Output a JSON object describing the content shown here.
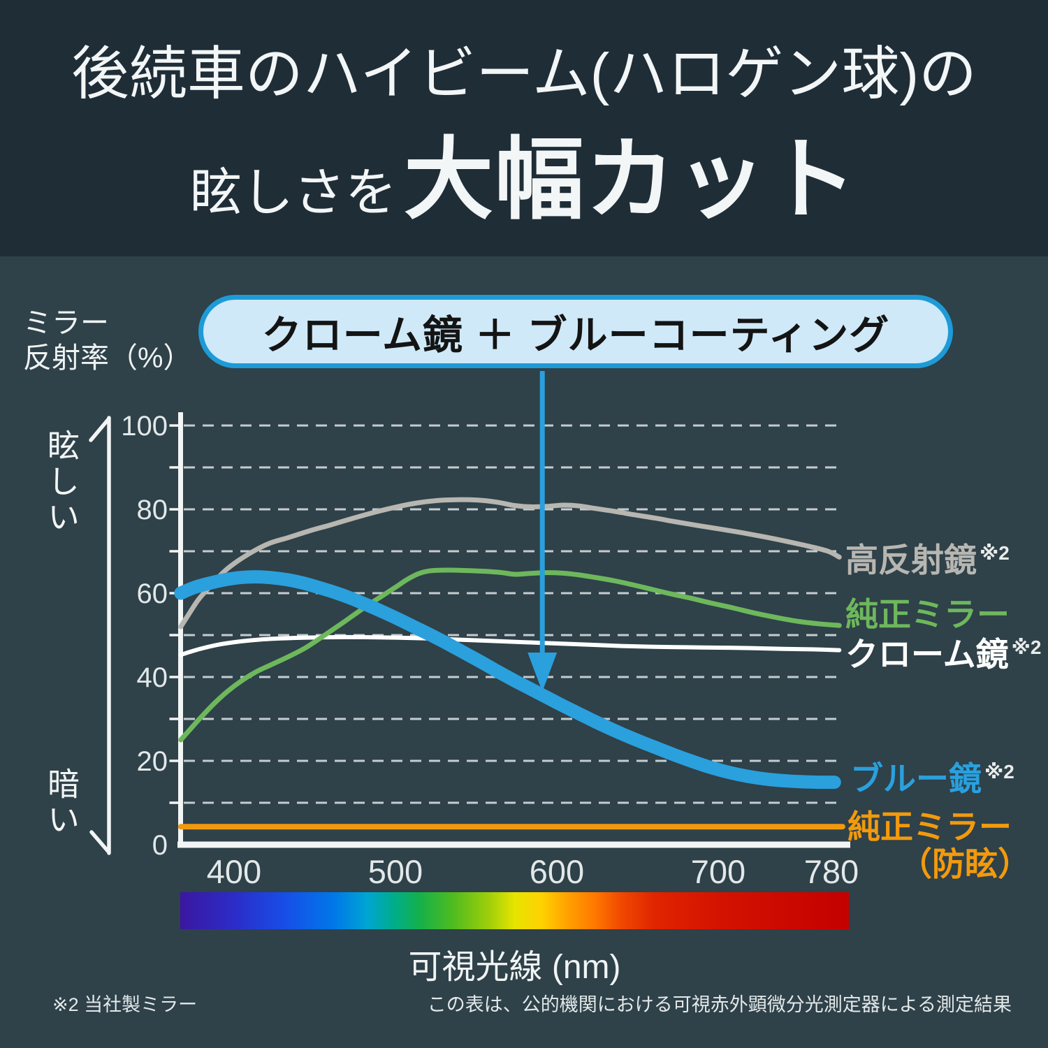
{
  "header": {
    "line1": "後続車のハイビーム(ハロゲン球)の",
    "line2_small": "眩しさを",
    "line2_big": "大幅カット"
  },
  "y_unit_label": {
    "line1": "ミラー",
    "line2": "反射率（%）"
  },
  "axis_annotations": {
    "top": "眩しい",
    "bottom": "暗い"
  },
  "callout": {
    "text": "クローム鏡 ＋ ブルーコーティング",
    "fill": "#cfe9f8",
    "border": "#1e9bd7",
    "arrow_color": "#2aa0dd"
  },
  "x_unit_label": "可視光線 (nm)",
  "footnotes": {
    "left": "※2 当社製ミラー",
    "right": "この表は、公的機関における可視赤外顕微分光測定器による測定結果"
  },
  "chart_data": {
    "type": "line",
    "x_axis": {
      "label": "可視光線 (nm)",
      "ticks": [
        400,
        500,
        600,
        700,
        780
      ],
      "range": [
        367,
        780
      ]
    },
    "y_axis": {
      "label": "ミラー反射率（%）",
      "ticks": [
        0,
        20,
        40,
        60,
        80,
        100
      ],
      "range": [
        0,
        100
      ],
      "gridline_step": 10,
      "grid": "dashed"
    },
    "legend_position": "right",
    "series": [
      {
        "name": "高反射鏡",
        "note": "※2",
        "color": "#b7b6b1",
        "width": 7,
        "points": [
          [
            367,
            52
          ],
          [
            372,
            55
          ],
          [
            378,
            58.5
          ],
          [
            386,
            62
          ],
          [
            394,
            65.2
          ],
          [
            402,
            67.6
          ],
          [
            412,
            70
          ],
          [
            422,
            71.9
          ],
          [
            434,
            73.3
          ],
          [
            447,
            74.9
          ],
          [
            460,
            76.3
          ],
          [
            474,
            77.9
          ],
          [
            488,
            79.4
          ],
          [
            501,
            80.6
          ],
          [
            513,
            81.5
          ],
          [
            526,
            82.1
          ],
          [
            538,
            82.3
          ],
          [
            551,
            82.2
          ],
          [
            563,
            81.7
          ],
          [
            574,
            80.9
          ],
          [
            584,
            80.6
          ],
          [
            594,
            80.7
          ],
          [
            604,
            81
          ],
          [
            614,
            80.8
          ],
          [
            624,
            80.2
          ],
          [
            636,
            79.5
          ],
          [
            648,
            78.7
          ],
          [
            661,
            77.9
          ],
          [
            674,
            77
          ],
          [
            688,
            76.1
          ],
          [
            701,
            75.3
          ],
          [
            715,
            74.4
          ],
          [
            729,
            73.4
          ],
          [
            743,
            72.3
          ],
          [
            756,
            71.2
          ],
          [
            768,
            70
          ],
          [
            775,
            68.6
          ]
        ]
      },
      {
        "name": "純正ミラー",
        "note": "",
        "color": "#6db85c",
        "width": 7,
        "points": [
          [
            367,
            25
          ],
          [
            373,
            27.6
          ],
          [
            380,
            30.6
          ],
          [
            388,
            33.8
          ],
          [
            396,
            36.6
          ],
          [
            405,
            39.2
          ],
          [
            414,
            41.3
          ],
          [
            424,
            43.1
          ],
          [
            434,
            44.9
          ],
          [
            444,
            46.9
          ],
          [
            452,
            48.9
          ],
          [
            460,
            51
          ],
          [
            468,
            53.1
          ],
          [
            476,
            55.3
          ],
          [
            484,
            57.4
          ],
          [
            492,
            59.4
          ],
          [
            500,
            61.4
          ],
          [
            507,
            63.2
          ],
          [
            514,
            64.6
          ],
          [
            521,
            65.3
          ],
          [
            532,
            65.5
          ],
          [
            544,
            65.4
          ],
          [
            556,
            65.2
          ],
          [
            566,
            64.9
          ],
          [
            574,
            64.5
          ],
          [
            583,
            64.7
          ],
          [
            593,
            64.9
          ],
          [
            603,
            64.8
          ],
          [
            613,
            64.4
          ],
          [
            623,
            63.8
          ],
          [
            635,
            63
          ],
          [
            647,
            62
          ],
          [
            659,
            60.9
          ],
          [
            671,
            59.8
          ],
          [
            683,
            58.8
          ],
          [
            696,
            57.6
          ],
          [
            709,
            56.5
          ],
          [
            722,
            55.3
          ],
          [
            736,
            54.2
          ],
          [
            749,
            53.3
          ],
          [
            762,
            52.7
          ],
          [
            775,
            52.3
          ]
        ]
      },
      {
        "name": "クローム鏡",
        "note": "※2",
        "color": "#ffffff",
        "width": 6,
        "points": [
          [
            367,
            45.3
          ],
          [
            378,
            46.6
          ],
          [
            390,
            47.7
          ],
          [
            402,
            48.4
          ],
          [
            415,
            48.9
          ],
          [
            429,
            49.2
          ],
          [
            445,
            49.4
          ],
          [
            463,
            49.5
          ],
          [
            481,
            49.5
          ],
          [
            500,
            49.4
          ],
          [
            520,
            49.2
          ],
          [
            540,
            48.9
          ],
          [
            560,
            48.6
          ],
          [
            580,
            48.3
          ],
          [
            600,
            48
          ],
          [
            620,
            47.7
          ],
          [
            640,
            47.4
          ],
          [
            660,
            47.2
          ],
          [
            680,
            47.1
          ],
          [
            700,
            47
          ],
          [
            720,
            46.9
          ],
          [
            740,
            46.7
          ],
          [
            758,
            46.6
          ],
          [
            775,
            46.4
          ]
        ]
      },
      {
        "name": "ブルー鏡",
        "note": "※2",
        "color": "#2aa0dd",
        "width": 19,
        "points": [
          [
            367,
            60
          ],
          [
            375,
            61.3
          ],
          [
            384,
            62.3
          ],
          [
            393,
            63.1
          ],
          [
            403,
            63.7
          ],
          [
            413,
            63.9
          ],
          [
            423,
            63.7
          ],
          [
            433,
            63.2
          ],
          [
            443,
            62.4
          ],
          [
            453,
            61.3
          ],
          [
            463,
            60.1
          ],
          [
            473,
            58.7
          ],
          [
            483,
            57.1
          ],
          [
            493,
            55.4
          ],
          [
            503,
            53.6
          ],
          [
            513,
            51.7
          ],
          [
            523,
            49.8
          ],
          [
            533,
            47.8
          ],
          [
            543,
            45.7
          ],
          [
            553,
            43.6
          ],
          [
            563,
            41.4
          ],
          [
            573,
            39.3
          ],
          [
            583,
            37.3
          ],
          [
            593,
            35.3
          ],
          [
            603,
            33.3
          ],
          [
            613,
            31.4
          ],
          [
            623,
            29.5
          ],
          [
            633,
            27.7
          ],
          [
            643,
            26
          ],
          [
            653,
            24.4
          ],
          [
            663,
            22.9
          ],
          [
            673,
            21.4
          ],
          [
            683,
            20
          ],
          [
            693,
            18.7
          ],
          [
            703,
            17.6
          ],
          [
            713,
            16.7
          ],
          [
            723,
            16
          ],
          [
            733,
            15.5
          ],
          [
            743,
            15.2
          ],
          [
            753,
            15
          ],
          [
            763,
            14.9
          ],
          [
            772,
            14.9
          ]
        ]
      },
      {
        "name": "純正ミラー",
        "name2": "（防眩）",
        "note": "",
        "color": "#f29a0d",
        "width": 8,
        "points": [
          [
            367,
            4.3
          ],
          [
            500,
            4.3
          ],
          [
            650,
            4.3
          ],
          [
            777,
            4.3
          ]
        ]
      }
    ],
    "annotation_arrow": {
      "x_nm": 591,
      "points_to_series": "ブルー鏡"
    }
  }
}
